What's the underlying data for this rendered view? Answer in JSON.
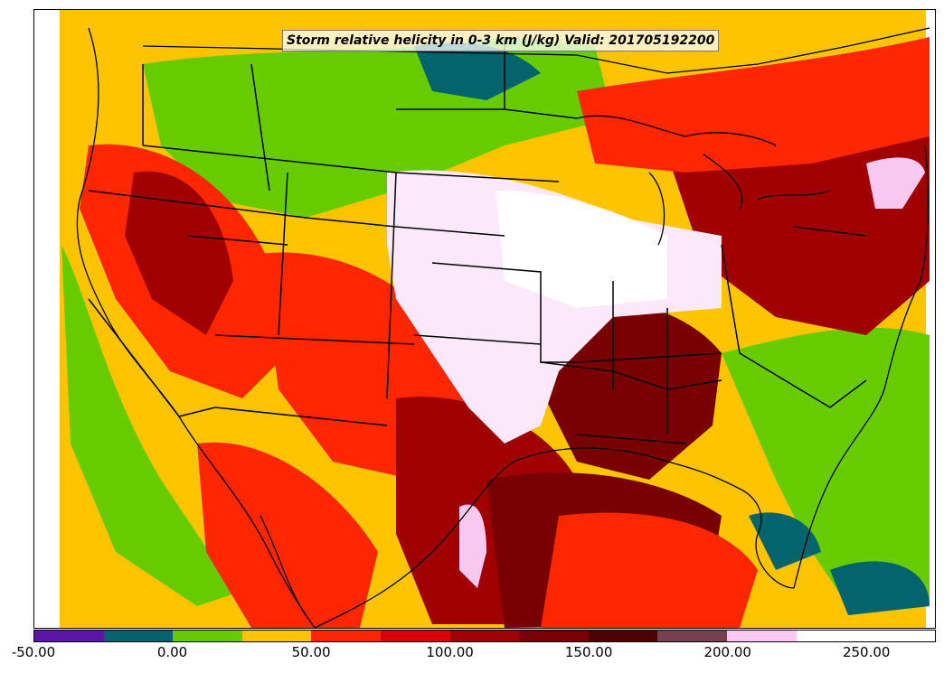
{
  "title": "Storm relative helicity in 0-3 km (J/kg) Valid: 201705192200",
  "colorbar": {
    "min": -50,
    "max": 275,
    "step": 25,
    "colors": [
      "#5a16a6",
      "#04646e",
      "#66cc00",
      "#ffc400",
      "#ff2600",
      "#d90000",
      "#a10000",
      "#780000",
      "#4d0000",
      "#774050",
      "#f8c8f0",
      "#ffffff",
      "#ffffff"
    ],
    "tick_labels": [
      "-50.00",
      "0.00",
      "50.00",
      "100.00",
      "150.00",
      "200.00",
      "250.00"
    ],
    "tick_values": [
      -50,
      0,
      50,
      100,
      150,
      200,
      250
    ]
  }
}
